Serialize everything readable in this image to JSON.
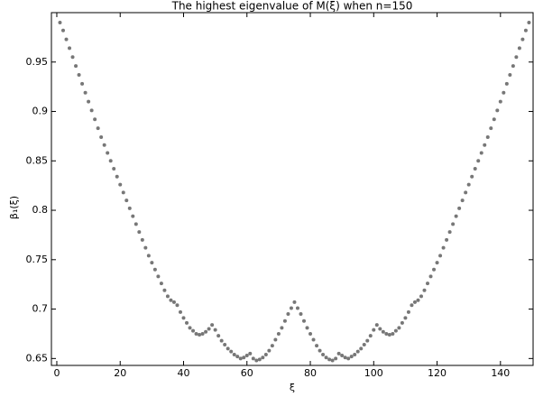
{
  "chart_data": {
    "type": "scatter",
    "title": "The highest eigenvalue of M(ξ) when n=150",
    "xlabel": "ξ",
    "ylabel": "β₁(ξ)",
    "xlim": [
      -1.7,
      150.3
    ],
    "ylim": [
      0.643,
      1.0
    ],
    "xticks": [
      0,
      20,
      40,
      60,
      80,
      100,
      120,
      140
    ],
    "yticks": [
      0.65,
      0.7,
      0.75,
      0.8,
      0.85,
      0.9,
      0.95
    ],
    "color": "#777777",
    "x": [
      1,
      2,
      3,
      4,
      5,
      6,
      7,
      8,
      9,
      10,
      11,
      12,
      13,
      14,
      15,
      16,
      17,
      18,
      19,
      20,
      21,
      22,
      23,
      24,
      25,
      26,
      27,
      28,
      29,
      30,
      31,
      32,
      33,
      34,
      35,
      36,
      37,
      38,
      39,
      40,
      41,
      42,
      43,
      44,
      45,
      46,
      47,
      48,
      49,
      50,
      51,
      52,
      53,
      54,
      55,
      56,
      57,
      58,
      59,
      60,
      61,
      62,
      63,
      64,
      65,
      66,
      67,
      68,
      69,
      70,
      71,
      72,
      73,
      74,
      75,
      76,
      77,
      78,
      79,
      80,
      81,
      82,
      83,
      84,
      85,
      86,
      87,
      88,
      89,
      90,
      91,
      92,
      93,
      94,
      95,
      96,
      97,
      98,
      99,
      100,
      101,
      102,
      103,
      104,
      105,
      106,
      107,
      108,
      109,
      110,
      111,
      112,
      113,
      114,
      115,
      116,
      117,
      118,
      119,
      120,
      121,
      122,
      123,
      124,
      125,
      126,
      127,
      128,
      129,
      130,
      131,
      132,
      133,
      134,
      135,
      136,
      137,
      138,
      139,
      140,
      141,
      142,
      143,
      144,
      145,
      146,
      147,
      148,
      149
    ],
    "values": [
      0.99,
      0.982,
      0.973,
      0.964,
      0.955,
      0.946,
      0.937,
      0.928,
      0.919,
      0.91,
      0.901,
      0.892,
      0.883,
      0.874,
      0.866,
      0.858,
      0.85,
      0.842,
      0.834,
      0.826,
      0.818,
      0.81,
      0.802,
      0.794,
      0.786,
      0.778,
      0.77,
      0.762,
      0.754,
      0.747,
      0.74,
      0.733,
      0.726,
      0.719,
      0.713,
      0.709,
      0.707,
      0.704,
      0.697,
      0.691,
      0.686,
      0.681,
      0.678,
      0.675,
      0.674,
      0.675,
      0.677,
      0.68,
      0.684,
      0.679,
      0.673,
      0.668,
      0.664,
      0.66,
      0.657,
      0.654,
      0.652,
      0.65,
      0.651,
      0.653,
      0.655,
      0.65,
      0.648,
      0.649,
      0.651,
      0.654,
      0.658,
      0.663,
      0.669,
      0.675,
      0.681,
      0.688,
      0.695,
      0.701,
      0.707,
      0.701,
      0.695,
      0.688,
      0.681,
      0.675,
      0.669,
      0.663,
      0.658,
      0.654,
      0.651,
      0.649,
      0.648,
      0.65,
      0.655,
      0.653,
      0.651,
      0.65,
      0.652,
      0.654,
      0.657,
      0.66,
      0.664,
      0.668,
      0.673,
      0.679,
      0.684,
      0.68,
      0.677,
      0.675,
      0.674,
      0.675,
      0.678,
      0.681,
      0.686,
      0.691,
      0.697,
      0.704,
      0.707,
      0.709,
      0.713,
      0.719,
      0.726,
      0.733,
      0.74,
      0.747,
      0.754,
      0.762,
      0.77,
      0.778,
      0.786,
      0.794,
      0.802,
      0.81,
      0.818,
      0.826,
      0.834,
      0.842,
      0.85,
      0.858,
      0.866,
      0.874,
      0.883,
      0.892,
      0.901,
      0.91,
      0.919,
      0.928,
      0.937,
      0.946,
      0.955,
      0.964,
      0.973,
      0.982,
      0.99
    ]
  }
}
